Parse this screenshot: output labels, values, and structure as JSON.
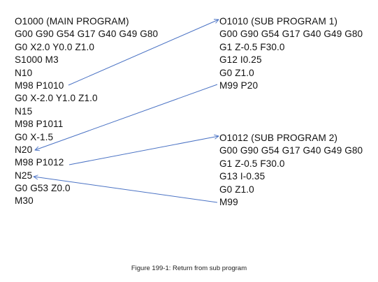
{
  "main_program": [
    "O1000 (MAIN PROGRAM)",
    "G00 G90 G54 G17 G40 G49 G80",
    "G0 X2.0 Y0.0 Z1.0",
    "S1000 M3",
    "N10",
    "M98 P1010",
    "G0 X-2.0 Y1.0 Z1.0",
    "N15",
    "M98 P1011",
    "G0 X-1.5",
    "N20",
    "M98 P1012",
    "N25",
    "G0 G53 Z0.0",
    "M30"
  ],
  "sub_program_1": [
    "O1010 (SUB PROGRAM 1)",
    "G00 G90 G54 G17 G40 G49 G80",
    "G1 Z-0.5 F30.0",
    "G12 I0.25",
    "G0 Z1.0",
    "M99 P20"
  ],
  "sub_program_2": [
    "O1012 (SUB PROGRAM 2)",
    "G00 G90 G54 G17 G40 G49 G80",
    "G1 Z-0.5 F30.0",
    "G13 I-0.35",
    "G0 Z1.0",
    "M99"
  ],
  "caption": "Figure 199-1: Return from sub program",
  "arrow_color": "#4a72c4"
}
